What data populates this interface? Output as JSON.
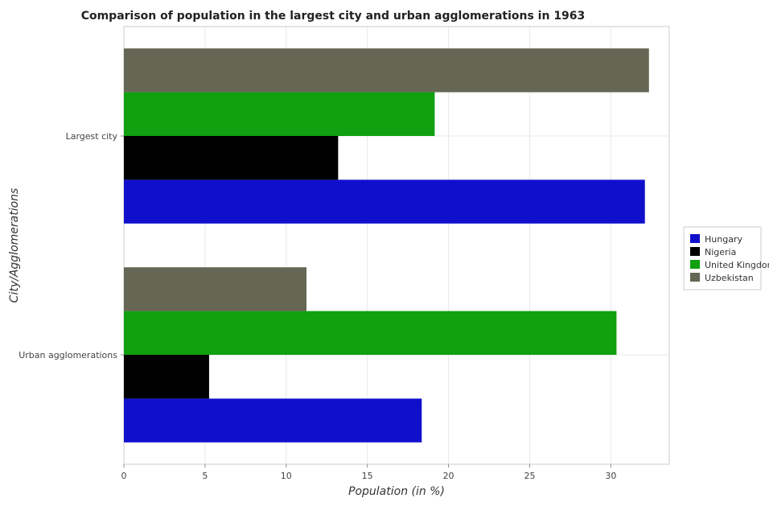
{
  "chart_data": {
    "type": "bar",
    "orientation": "horizontal",
    "title": "Comparison of population in the largest city and urban agglomerations in 1963",
    "xlabel": "Population (in %)",
    "ylabel": "City/Agglomerations",
    "xlim": [
      0,
      33.6
    ],
    "xticks": [
      0,
      5,
      10,
      15,
      20,
      25,
      30
    ],
    "categories": [
      "Largest city",
      "Urban agglomerations"
    ],
    "series": [
      {
        "name": "Hungary",
        "color": "#1010cc",
        "values": [
          32.1,
          18.35
        ]
      },
      {
        "name": "Nigeria",
        "color": "#000000",
        "values": [
          13.2,
          5.25
        ]
      },
      {
        "name": "United Kingdom",
        "color": "#10a010",
        "values": [
          19.15,
          30.35
        ]
      },
      {
        "name": "Uzbekistan",
        "color": "#666655",
        "values": [
          32.35,
          11.25
        ]
      }
    ],
    "grid": true,
    "legend_position": "right"
  }
}
